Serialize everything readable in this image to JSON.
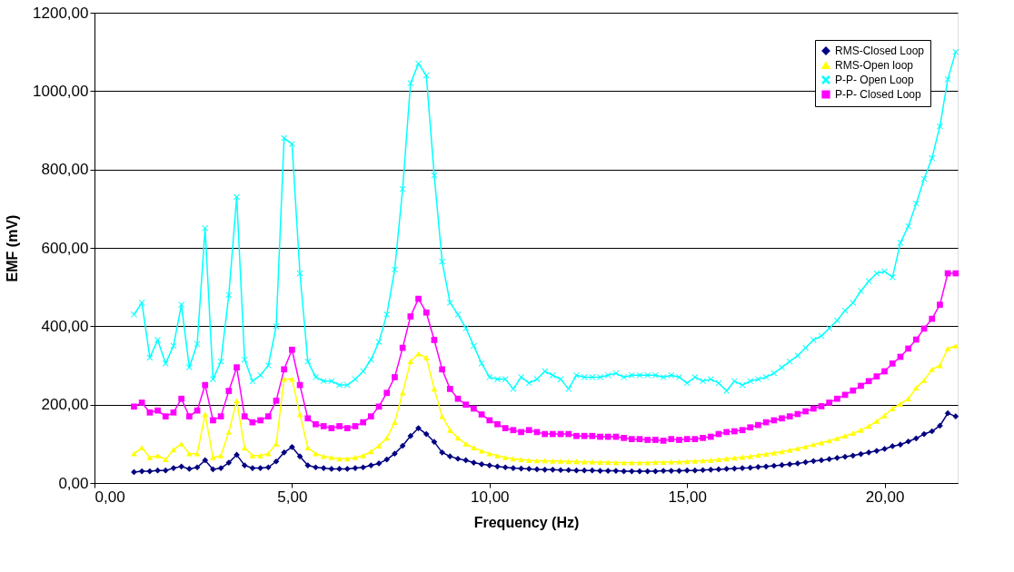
{
  "chart_data": {
    "type": "line",
    "xlabel": "Frequency (Hz)",
    "ylabel": "EMF (mV)",
    "x": [
      1.0,
      1.2,
      1.4,
      1.6,
      1.8,
      2.0,
      2.2,
      2.4,
      2.6,
      2.8,
      3.0,
      3.2,
      3.4,
      3.6,
      3.8,
      4.0,
      4.2,
      4.4,
      4.6,
      4.8,
      5.0,
      5.2,
      5.4,
      5.6,
      5.8,
      6.0,
      6.2,
      6.4,
      6.6,
      6.8,
      7.0,
      7.2,
      7.4,
      7.6,
      7.8,
      8.0,
      8.2,
      8.4,
      8.6,
      8.8,
      9.0,
      9.2,
      9.4,
      9.6,
      9.8,
      10.0,
      10.2,
      10.4,
      10.6,
      10.8,
      11.0,
      11.2,
      11.4,
      11.6,
      11.8,
      12.0,
      12.2,
      12.4,
      12.6,
      12.8,
      13.0,
      13.2,
      13.4,
      13.6,
      13.8,
      14.0,
      14.2,
      14.4,
      14.6,
      14.8,
      15.0,
      15.2,
      15.4,
      15.6,
      15.8,
      16.0,
      16.2,
      16.4,
      16.6,
      16.8,
      17.0,
      17.2,
      17.4,
      17.6,
      17.8,
      18.0,
      18.2,
      18.4,
      18.6,
      18.8,
      19.0,
      19.2,
      19.4,
      19.6,
      19.8,
      20.0,
      20.2,
      20.4,
      20.6,
      20.8,
      21.0,
      21.2,
      21.4,
      21.6,
      21.8
    ],
    "series": [
      {
        "name": "RMS-Closed Loop",
        "color": "#000080",
        "marker": "diamond",
        "values": [
          28,
          30,
          30,
          32,
          32,
          38,
          42,
          36,
          40,
          58,
          35,
          38,
          52,
          72,
          45,
          38,
          38,
          40,
          55,
          78,
          92,
          68,
          45,
          40,
          38,
          36,
          36,
          36,
          38,
          40,
          45,
          50,
          60,
          75,
          95,
          120,
          140,
          125,
          105,
          78,
          68,
          62,
          58,
          52,
          48,
          45,
          42,
          40,
          38,
          37,
          36,
          35,
          34,
          34,
          33,
          33,
          32,
          32,
          32,
          31,
          31,
          31,
          30,
          30,
          30,
          30,
          30,
          31,
          31,
          31,
          32,
          32,
          33,
          34,
          35,
          36,
          37,
          38,
          39,
          41,
          42,
          44,
          46,
          48,
          50,
          53,
          56,
          58,
          61,
          64,
          67,
          70,
          74,
          78,
          82,
          87,
          94,
          98,
          106,
          114,
          125,
          132,
          146,
          178,
          170
        ]
      },
      {
        "name": "RMS-Open loop",
        "color": "#ffff00",
        "marker": "triangle",
        "values": [
          75,
          90,
          65,
          70,
          60,
          85,
          100,
          75,
          75,
          175,
          65,
          70,
          130,
          210,
          90,
          70,
          70,
          75,
          100,
          265,
          265,
          175,
          90,
          75,
          68,
          65,
          62,
          62,
          65,
          70,
          80,
          95,
          115,
          155,
          230,
          310,
          330,
          320,
          240,
          170,
          135,
          115,
          100,
          90,
          82,
          75,
          70,
          65,
          62,
          60,
          58,
          57,
          57,
          56,
          56,
          55,
          55,
          54,
          54,
          53,
          53,
          52,
          52,
          52,
          52,
          52,
          53,
          53,
          54,
          54,
          55,
          56,
          57,
          58,
          60,
          62,
          64,
          66,
          68,
          71,
          74,
          77,
          80,
          84,
          88,
          93,
          98,
          103,
          108,
          114,
          120,
          127,
          135,
          145,
          158,
          172,
          190,
          202,
          215,
          243,
          262,
          290,
          300,
          343,
          350
        ]
      },
      {
        "name": "P-P- Open Loop",
        "color": "#00ffff",
        "marker": "cross",
        "values": [
          430,
          460,
          320,
          365,
          305,
          350,
          455,
          295,
          355,
          650,
          265,
          310,
          480,
          730,
          315,
          260,
          275,
          300,
          400,
          880,
          865,
          535,
          310,
          270,
          260,
          260,
          250,
          250,
          265,
          285,
          315,
          360,
          430,
          545,
          750,
          1020,
          1070,
          1040,
          785,
          565,
          460,
          430,
          395,
          350,
          305,
          270,
          265,
          265,
          240,
          270,
          255,
          265,
          285,
          275,
          265,
          240,
          275,
          270,
          270,
          270,
          275,
          280,
          270,
          275,
          275,
          275,
          275,
          270,
          275,
          270,
          255,
          270,
          260,
          265,
          255,
          235,
          260,
          250,
          260,
          265,
          270,
          280,
          295,
          310,
          325,
          345,
          365,
          375,
          395,
          415,
          440,
          460,
          490,
          515,
          535,
          540,
          525,
          613,
          655,
          713,
          776,
          829,
          910,
          1030,
          1100
        ]
      },
      {
        "name": "P-P- Closed Loop",
        "color": "#ff00ff",
        "marker": "square",
        "values": [
          195,
          205,
          180,
          185,
          170,
          180,
          215,
          170,
          185,
          250,
          160,
          170,
          235,
          295,
          170,
          155,
          160,
          170,
          210,
          290,
          340,
          250,
          165,
          150,
          145,
          140,
          145,
          140,
          145,
          155,
          170,
          195,
          230,
          270,
          345,
          425,
          470,
          435,
          365,
          290,
          240,
          215,
          200,
          190,
          175,
          160,
          150,
          140,
          135,
          130,
          135,
          130,
          125,
          125,
          125,
          125,
          120,
          120,
          120,
          118,
          118,
          118,
          115,
          112,
          112,
          110,
          110,
          108,
          112,
          110,
          112,
          112,
          115,
          118,
          125,
          130,
          132,
          135,
          142,
          148,
          155,
          160,
          165,
          170,
          176,
          183,
          190,
          196,
          205,
          215,
          225,
          236,
          248,
          260,
          272,
          285,
          305,
          322,
          343,
          366,
          394,
          419,
          455,
          535,
          535
        ]
      }
    ],
    "xlim": [
      0,
      21.85
    ],
    "xticks": [
      {
        "value": 0,
        "label": "0,00"
      },
      {
        "value": 5,
        "label": "5,00"
      },
      {
        "value": 10,
        "label": "10,00"
      },
      {
        "value": 15,
        "label": "15,00"
      },
      {
        "value": 20,
        "label": "20,00"
      }
    ],
    "ylim": [
      0,
      1200
    ],
    "yticks": [
      {
        "value": 0,
        "label": "0,00"
      },
      {
        "value": 200,
        "label": "200,00"
      },
      {
        "value": 400,
        "label": "400,00"
      },
      {
        "value": 600,
        "label": "600,00"
      },
      {
        "value": 800,
        "label": "800,00"
      },
      {
        "value": 1000,
        "label": "1000,00"
      },
      {
        "value": 1200,
        "label": "1200,00"
      }
    ],
    "grid": "y",
    "legend": "top right",
    "line_style": "solid"
  }
}
